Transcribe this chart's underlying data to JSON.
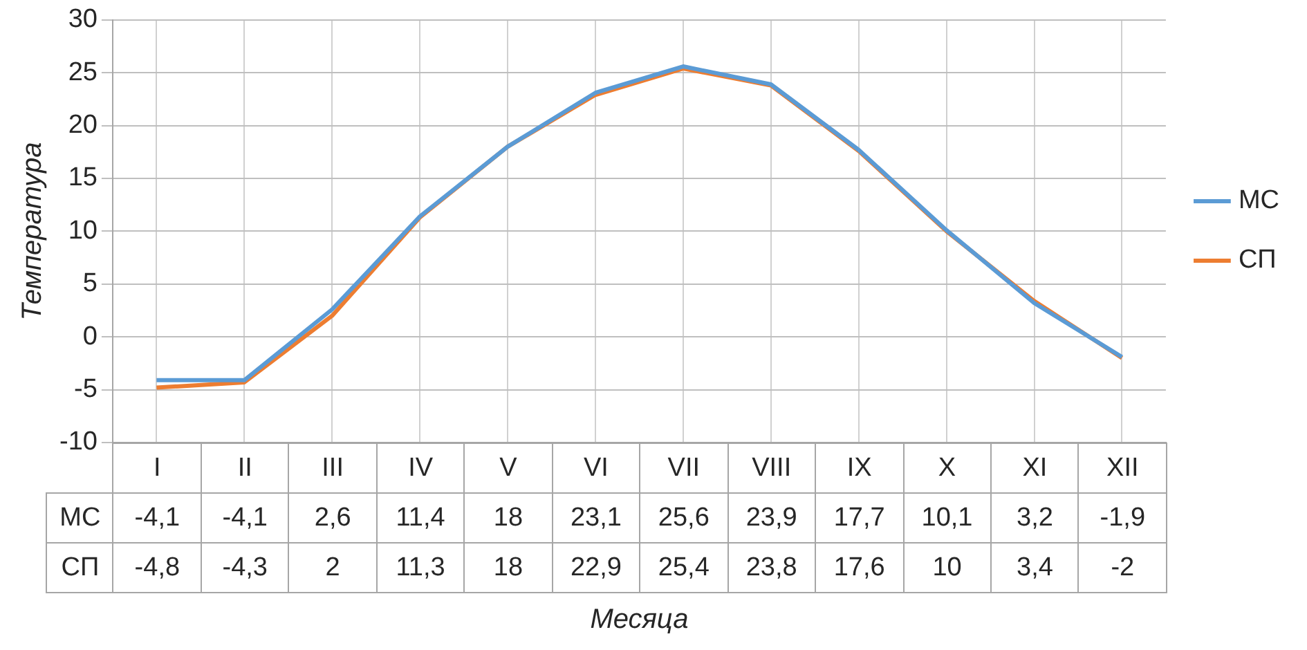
{
  "chart_data": {
    "type": "line",
    "xlabel": "Месяца",
    "ylabel": "Температура",
    "categories": [
      "I",
      "II",
      "III",
      "IV",
      "V",
      "VI",
      "VII",
      "VIII",
      "IX",
      "X",
      "XI",
      "XII"
    ],
    "series": [
      {
        "name": "МС",
        "color": "#5b9bd5",
        "values": [
          -4.1,
          -4.1,
          2.6,
          11.4,
          18,
          23.1,
          25.6,
          23.9,
          17.7,
          10.1,
          3.2,
          -1.9
        ],
        "value_labels": [
          "-4,1",
          "-4,1",
          "2,6",
          "11,4",
          "18",
          "23,1",
          "25,6",
          "23,9",
          "17,7",
          "10,1",
          "3,2",
          "-1,9"
        ]
      },
      {
        "name": "СП",
        "color": "#ed7d31",
        "values": [
          -4.8,
          -4.3,
          2,
          11.3,
          18,
          22.9,
          25.4,
          23.8,
          17.6,
          10,
          3.4,
          -2
        ],
        "value_labels": [
          "-4,8",
          "-4,3",
          "2",
          "11,3",
          "18",
          "22,9",
          "25,4",
          "23,8",
          "17,6",
          "10",
          "3,4",
          "-2"
        ]
      }
    ],
    "ylim": [
      -10,
      30
    ],
    "yticks": [
      -10,
      -5,
      0,
      5,
      10,
      15,
      20,
      25,
      30
    ],
    "grid": true,
    "legend": "right",
    "marker": "none",
    "line_style": "solid"
  }
}
